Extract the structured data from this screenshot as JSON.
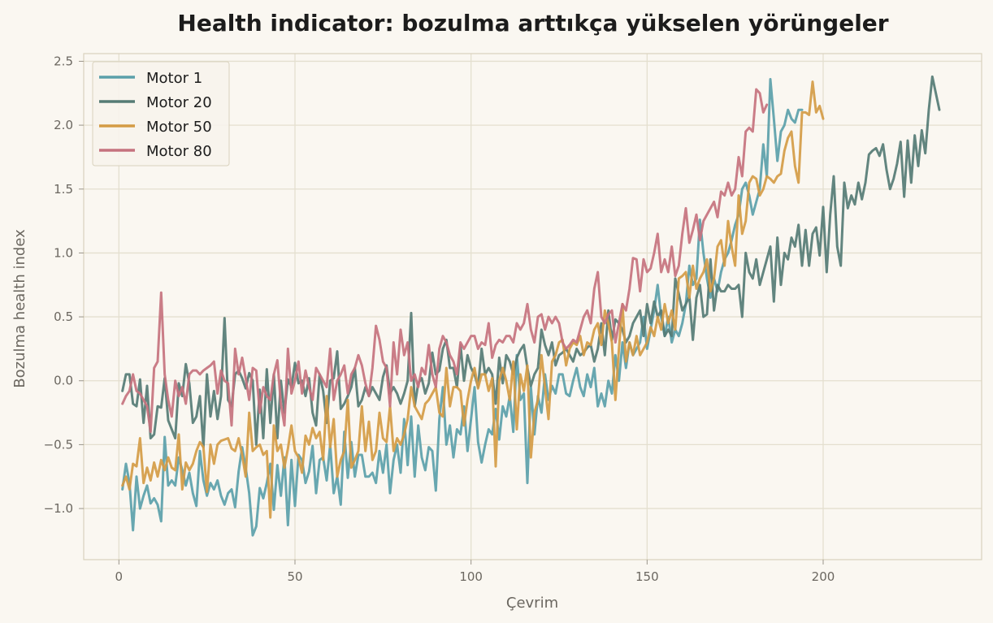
{
  "chart_data": {
    "type": "line",
    "title": "Health indicator: bozulma arttıkça yükselen yörüngeler",
    "xlabel": "Çevrim",
    "ylabel": "Bozulma health index",
    "xlim": [
      -10,
      245
    ],
    "ylim": [
      -1.4,
      2.56
    ],
    "x_ticks": [
      0,
      50,
      100,
      150,
      200
    ],
    "x_tick_labels": [
      "0",
      "50",
      "100",
      "150",
      "200"
    ],
    "y_ticks": [
      -1.0,
      -0.5,
      0.0,
      0.5,
      1.0,
      1.5,
      2.0,
      2.5
    ],
    "y_tick_labels": [
      "−1.0",
      "−0.5",
      "0.0",
      "0.5",
      "1.0",
      "1.5",
      "2.0",
      "2.5"
    ],
    "grid": true,
    "legend_position": "top-left",
    "series": [
      {
        "name": "Motor 1",
        "color": "#5ba0aa",
        "x_start": 1,
        "values": [
          -0.85,
          -0.65,
          -0.8,
          -1.17,
          -0.75,
          -1.0,
          -0.9,
          -0.82,
          -0.96,
          -0.92,
          -0.97,
          -1.1,
          -0.44,
          -0.82,
          -0.78,
          -0.82,
          -0.6,
          -0.7,
          -0.82,
          -0.72,
          -0.88,
          -0.98,
          -0.55,
          -0.78,
          -0.9,
          -0.8,
          -0.85,
          -0.78,
          -0.9,
          -0.97,
          -0.88,
          -0.85,
          -0.99,
          -0.71,
          -0.52,
          -0.68,
          -0.88,
          -1.21,
          -1.14,
          -0.84,
          -0.92,
          -0.8,
          -0.65,
          -1.01,
          -0.66,
          -0.9,
          -0.6,
          -1.13,
          -0.62,
          -0.98,
          -0.58,
          -0.62,
          -0.8,
          -0.71,
          -0.51,
          -0.88,
          -0.62,
          -0.6,
          -0.78,
          -0.5,
          -0.88,
          -0.75,
          -0.97,
          -0.4,
          -0.76,
          -0.48,
          -0.75,
          -0.58,
          -0.58,
          -0.75,
          -0.75,
          -0.72,
          -0.8,
          -0.55,
          -0.72,
          -0.5,
          -0.88,
          -0.62,
          -0.5,
          -0.72,
          -0.3,
          -0.66,
          -0.28,
          -0.75,
          -0.35,
          -0.6,
          -0.7,
          -0.52,
          -0.55,
          -0.86,
          -0.3,
          -0.05,
          -0.5,
          -0.35,
          -0.6,
          -0.38,
          -0.42,
          -0.2,
          -0.55,
          -0.3,
          -0.05,
          -0.48,
          -0.64,
          -0.5,
          -0.38,
          -0.42,
          -0.22,
          -0.46,
          -0.2,
          -0.28,
          -0.12,
          -0.4,
          0.2,
          -0.15,
          -0.1,
          -0.8,
          -0.05,
          -0.42,
          -0.12,
          -0.25,
          0.05,
          -0.15,
          -0.04,
          -0.1,
          0.05,
          0.05,
          -0.1,
          -0.12,
          0.0,
          0.1,
          -0.05,
          -0.12,
          0.05,
          -0.05,
          0.1,
          -0.2,
          -0.1,
          -0.2,
          0.0,
          -0.1,
          0.2,
          0.0,
          0.3,
          0.1,
          0.3,
          0.2,
          0.25,
          0.3,
          0.5,
          0.25,
          0.4,
          0.55,
          0.75,
          0.5,
          0.35,
          0.5,
          0.3,
          0.4,
          0.35,
          0.45,
          0.6,
          0.9,
          0.75,
          0.8,
          1.26,
          1.0,
          0.8,
          0.65,
          0.8,
          0.7,
          0.85,
          0.95,
          1.0,
          1.1,
          1.22,
          1.3,
          1.5,
          1.55,
          1.45,
          1.3,
          1.4,
          1.5,
          1.85,
          1.6,
          2.36,
          2.05,
          1.72,
          1.95,
          2.0,
          2.12,
          2.05,
          2.02,
          2.12,
          2.12
        ]
      },
      {
        "name": "Motor 20",
        "color": "#557b75",
        "x_start": 1,
        "values": [
          -0.08,
          0.05,
          0.05,
          -0.18,
          -0.2,
          0.01,
          -0.33,
          -0.04,
          -0.45,
          -0.42,
          -0.2,
          -0.21,
          0.02,
          -0.31,
          -0.38,
          -0.45,
          -0.02,
          -0.12,
          0.13,
          -0.02,
          -0.33,
          -0.28,
          -0.12,
          -0.52,
          0.05,
          -0.28,
          -0.08,
          -0.3,
          -0.12,
          0.49,
          -0.15,
          -0.2,
          0.05,
          0.08,
          0.02,
          -0.06,
          0.06,
          0.0,
          -0.5,
          -0.07,
          -0.45,
          0.09,
          -0.33,
          0.05,
          -0.45,
          0.0,
          -0.25,
          0.01,
          -0.05,
          0.14,
          -0.02,
          0.0,
          -0.12,
          0.02,
          -0.25,
          -0.35,
          0.05,
          -0.08,
          -0.33,
          0.0,
          0.02,
          0.23,
          -0.22,
          -0.18,
          -0.12,
          -0.05,
          0.1,
          -0.2,
          -0.15,
          -0.05,
          -0.12,
          -0.05,
          -0.1,
          -0.15,
          0.03,
          0.12,
          -0.1,
          -0.05,
          -0.1,
          -0.18,
          -0.1,
          0.0,
          0.53,
          -0.2,
          -0.02,
          0.02,
          -0.1,
          -0.02,
          0.22,
          0.05,
          0.08,
          0.25,
          0.32,
          0.1,
          0.1,
          -0.05,
          0.28,
          0.0,
          0.2,
          0.1,
          0.05,
          -0.05,
          0.25,
          0.05,
          0.1,
          0.05,
          -0.18,
          0.18,
          -0.02,
          0.2,
          0.15,
          0.05,
          0.18,
          0.24,
          0.28,
          0.1,
          -0.04,
          0.05,
          0.1,
          0.4,
          0.28,
          0.2,
          0.3,
          0.12,
          0.2,
          0.22,
          0.25,
          0.2,
          0.15,
          0.25,
          0.2,
          0.22,
          0.26,
          0.28,
          0.15,
          0.25,
          0.45,
          0.2,
          0.55,
          0.32,
          0.48,
          0.45,
          0.4,
          0.3,
          0.35,
          0.45,
          0.5,
          0.55,
          0.35,
          0.6,
          0.45,
          0.62,
          0.5,
          0.55,
          0.35,
          0.4,
          0.35,
          0.8,
          0.68,
          0.55,
          0.6,
          0.66,
          0.32,
          0.65,
          0.75,
          0.5,
          0.52,
          0.95,
          0.55,
          0.75,
          0.7,
          0.7,
          0.75,
          0.72,
          0.72,
          0.75,
          0.5,
          1.0,
          0.85,
          0.8,
          0.95,
          0.75,
          0.85,
          0.95,
          1.05,
          0.62,
          1.12,
          0.75,
          1.0,
          0.95,
          1.12,
          1.05,
          1.22,
          0.9,
          1.18,
          0.9,
          1.15,
          1.2,
          0.98,
          1.36,
          0.85,
          1.3,
          1.6,
          1.05,
          0.9,
          1.55,
          1.35,
          1.45,
          1.38,
          1.55,
          1.42,
          1.55,
          1.77,
          1.8,
          1.82,
          1.76,
          1.85,
          1.65,
          1.5,
          1.58,
          1.7,
          1.87,
          1.44,
          1.88,
          1.55,
          1.92,
          1.68,
          1.96,
          1.78,
          2.12,
          2.38,
          2.25,
          2.12
        ]
      },
      {
        "name": "Motor 50",
        "color": "#d49b45",
        "x_start": 1,
        "values": [
          -0.82,
          -0.75,
          -0.85,
          -0.65,
          -0.67,
          -0.45,
          -0.8,
          -0.68,
          -0.78,
          -0.64,
          -0.75,
          -0.62,
          -0.7,
          -0.6,
          -0.68,
          -0.7,
          -0.42,
          -0.85,
          -0.64,
          -0.7,
          -0.65,
          -0.55,
          -0.48,
          -0.52,
          -0.87,
          -0.5,
          -0.65,
          -0.5,
          -0.47,
          -0.46,
          -0.45,
          -0.53,
          -0.55,
          -0.45,
          -0.58,
          -0.75,
          -0.25,
          -0.55,
          -0.52,
          -0.5,
          -0.58,
          -0.55,
          -1.07,
          -0.35,
          -0.55,
          -0.5,
          -0.68,
          -0.53,
          -0.35,
          -0.55,
          -0.6,
          -0.72,
          -0.43,
          -0.5,
          -0.37,
          -0.45,
          -0.4,
          -0.62,
          -0.12,
          -0.52,
          -0.3,
          -0.75,
          -0.62,
          -0.55,
          -0.15,
          -0.68,
          -0.62,
          -0.55,
          -0.2,
          -0.55,
          -0.32,
          -0.62,
          -0.55,
          -0.25,
          -0.45,
          -0.48,
          -0.2,
          -0.55,
          -0.45,
          -0.5,
          -0.42,
          -0.3,
          -0.05,
          -0.2,
          -0.25,
          -0.3,
          -0.18,
          -0.15,
          -0.1,
          -0.05,
          -0.25,
          -0.28,
          0.1,
          -0.2,
          -0.05,
          -0.05,
          -0.08,
          -0.35,
          -0.15,
          0.0,
          0.1,
          -0.06,
          0.05,
          0.05,
          -0.08,
          0.02,
          -0.67,
          0.0,
          0.1,
          0.0,
          -0.15,
          0.15,
          -0.38,
          0.05,
          -0.08,
          0.12,
          -0.6,
          -0.25,
          -0.15,
          0.2,
          -0.05,
          -0.3,
          0.15,
          0.2,
          0.3,
          0.32,
          0.12,
          0.25,
          0.3,
          0.28,
          0.35,
          0.2,
          0.3,
          0.28,
          0.4,
          0.45,
          0.28,
          0.55,
          0.45,
          0.3,
          -0.15,
          0.25,
          0.6,
          0.15,
          0.3,
          0.2,
          0.35,
          0.2,
          0.25,
          0.3,
          0.42,
          0.35,
          0.5,
          0.4,
          0.6,
          0.45,
          0.55,
          0.4,
          0.8,
          0.82,
          0.85,
          0.65,
          0.9,
          0.72,
          0.8,
          0.85,
          0.95,
          0.7,
          0.8,
          1.05,
          1.1,
          0.9,
          1.25,
          1.05,
          0.9,
          1.45,
          1.15,
          1.25,
          1.55,
          1.6,
          1.58,
          1.45,
          1.5,
          1.6,
          1.58,
          1.55,
          1.6,
          1.62,
          1.8,
          1.9,
          1.95,
          1.68,
          1.55,
          2.1,
          2.1,
          2.08,
          2.34,
          2.1,
          2.15,
          2.05
        ]
      },
      {
        "name": "Motor 80",
        "color": "#c5727e",
        "x_start": 1,
        "values": [
          -0.18,
          -0.12,
          -0.08,
          0.05,
          -0.08,
          -0.1,
          -0.15,
          -0.2,
          -0.4,
          0.1,
          0.15,
          0.69,
          0.05,
          -0.15,
          -0.28,
          0.0,
          -0.12,
          -0.05,
          -0.18,
          0.05,
          0.08,
          0.08,
          0.05,
          0.08,
          0.1,
          0.12,
          0.15,
          -0.1,
          0.08,
          0.0,
          -0.02,
          -0.35,
          0.25,
          0.05,
          0.18,
          0.02,
          -0.15,
          0.1,
          0.08,
          -0.25,
          -0.05,
          -0.12,
          -0.15,
          0.05,
          0.16,
          -0.18,
          -0.35,
          0.25,
          -0.1,
          0.0,
          0.15,
          -0.1,
          0.08,
          -0.05,
          -0.15,
          0.1,
          0.05,
          0.0,
          -0.05,
          0.25,
          -0.15,
          0.0,
          0.05,
          0.12,
          -0.1,
          0.05,
          0.1,
          0.2,
          0.12,
          -0.02,
          -0.12,
          0.1,
          0.43,
          0.32,
          0.15,
          0.1,
          -0.2,
          0.3,
          0.05,
          0.4,
          0.2,
          0.3,
          0.0,
          0.05,
          -0.05,
          0.1,
          0.05,
          0.28,
          0.05,
          -0.05,
          0.25,
          0.35,
          0.3,
          0.2,
          0.15,
          0.05,
          0.3,
          0.25,
          0.3,
          0.35,
          0.35,
          0.25,
          0.3,
          0.28,
          0.45,
          0.18,
          0.28,
          0.32,
          0.3,
          0.35,
          0.35,
          0.3,
          0.45,
          0.4,
          0.45,
          0.6,
          0.4,
          0.3,
          0.5,
          0.52,
          0.4,
          0.5,
          0.45,
          0.5,
          0.45,
          0.3,
          0.25,
          0.28,
          0.32,
          0.3,
          0.4,
          0.5,
          0.55,
          0.45,
          0.72,
          0.85,
          0.5,
          0.45,
          0.52,
          0.55,
          0.3,
          0.45,
          0.6,
          0.55,
          0.72,
          0.96,
          0.95,
          0.7,
          0.95,
          0.85,
          0.88,
          1.0,
          1.15,
          0.85,
          0.95,
          0.85,
          1.05,
          0.82,
          0.9,
          1.15,
          1.35,
          1.08,
          1.18,
          1.3,
          1.1,
          1.25,
          1.3,
          1.35,
          1.4,
          1.28,
          1.48,
          1.45,
          1.55,
          1.45,
          1.5,
          1.75,
          1.6,
          1.95,
          1.98,
          1.95,
          2.28,
          2.25,
          2.1,
          2.16
        ]
      }
    ]
  }
}
